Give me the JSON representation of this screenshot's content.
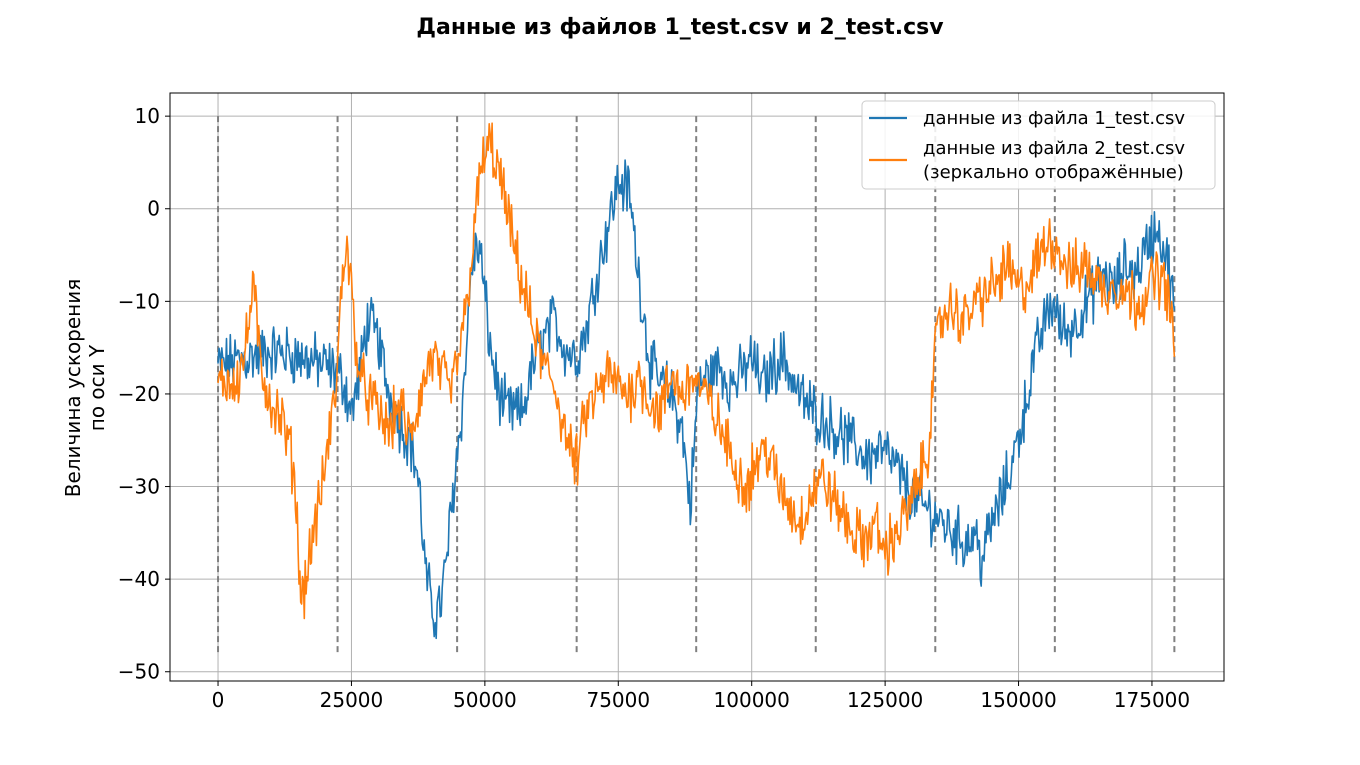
{
  "chart_data": {
    "type": "line",
    "title": "Данные из файлов 1_test.csv и 2_test.csv",
    "xlabel": "",
    "ylabel_line1": "Величина ускорения",
    "ylabel_line2": "по оси Y",
    "xlim": [
      -9000,
      188500
    ],
    "ylim": [
      -51,
      12.5
    ],
    "xticks": [
      0,
      25000,
      50000,
      75000,
      100000,
      125000,
      150000,
      175000
    ],
    "xtick_labels": [
      "0",
      "25000",
      "50000",
      "75000",
      "100000",
      "125000",
      "150000",
      "175000"
    ],
    "yticks": [
      10,
      0,
      -10,
      -20,
      -30,
      -40,
      -50
    ],
    "ytick_labels": [
      "10",
      "0",
      "−10",
      "−20",
      "−30",
      "−40",
      "−50"
    ],
    "grid": true,
    "legend_position": "top-right",
    "vlines": {
      "x": [
        0,
        22400,
        44800,
        67200,
        89600,
        112000,
        134400,
        156800,
        179200
      ],
      "ymin": -48,
      "ymax": 10,
      "color": "#808080",
      "style": "dashed"
    },
    "series": [
      {
        "name": "данные из файла 1_test.csv",
        "color": "#1f77b4",
        "x": [
          0,
          3000,
          6000,
          9000,
          12000,
          15000,
          18000,
          20000,
          22000,
          23500,
          25000,
          26500,
          28000,
          30000,
          32000,
          34000,
          36000,
          37500,
          39000,
          40500,
          42000,
          43500,
          44500,
          46000,
          47500,
          49000,
          51000,
          53000,
          55000,
          57000,
          59000,
          61000,
          63000,
          65000,
          67000,
          69000,
          71000,
          73000,
          75000,
          77000,
          79000,
          81000,
          83000,
          85000,
          87000,
          88500,
          90000,
          92000,
          94000,
          96000,
          98000,
          100000,
          102000,
          104000,
          106000,
          108000,
          110000,
          112000,
          114000,
          116000,
          118000,
          120000,
          122000,
          124000,
          126000,
          128000,
          130000,
          132000,
          134000,
          136000,
          138000,
          140000,
          142000,
          143000,
          145000,
          147000,
          149000,
          151000,
          153000,
          155000,
          156500,
          158000,
          160000,
          162000,
          164000,
          166000,
          168000,
          170000,
          172000,
          174000,
          176000,
          178000,
          179200
        ],
        "y": [
          -17,
          -16.5,
          -16,
          -15.5,
          -15.5,
          -16,
          -16.5,
          -17,
          -17.5,
          -18.5,
          -22,
          -18,
          -12,
          -14,
          -20,
          -23,
          -25,
          -29,
          -40,
          -44,
          -42,
          -34,
          -28,
          -20,
          -6,
          -4,
          -15,
          -21,
          -22,
          -22,
          -17,
          -14,
          -12,
          -15,
          -16,
          -13,
          -7,
          -2,
          3,
          2,
          -8,
          -17,
          -19,
          -20,
          -24,
          -32,
          -19,
          -18,
          -17,
          -19,
          -18,
          -16,
          -19,
          -17,
          -16,
          -19,
          -21,
          -22,
          -23,
          -24,
          -25,
          -26,
          -27,
          -26,
          -27,
          -29,
          -31,
          -32,
          -33,
          -34,
          -35,
          -36,
          -35,
          -38,
          -34,
          -31,
          -27,
          -22,
          -16,
          -12,
          -10,
          -13,
          -13,
          -11,
          -9,
          -7,
          -9,
          -6,
          -7,
          -4,
          -2,
          -6,
          -11
        ]
      },
      {
        "name": "данные из файла 2_test.csv\n(зеркально отображённые)",
        "color": "#ff7f0e",
        "x": [
          0,
          2000,
          4000,
          5500,
          6500,
          8000,
          10000,
          12000,
          13500,
          14500,
          15500,
          16500,
          17500,
          19000,
          20500,
          22000,
          23000,
          24000,
          25000,
          26500,
          28000,
          30000,
          32000,
          34000,
          36000,
          38000,
          40000,
          42000,
          43500,
          45000,
          46500,
          48000,
          49500,
          51000,
          53000,
          55000,
          57000,
          59000,
          61000,
          63000,
          65000,
          67000,
          69000,
          71000,
          73000,
          75000,
          77000,
          79000,
          81000,
          83000,
          85000,
          87000,
          89000,
          91000,
          93000,
          95000,
          97000,
          99000,
          101000,
          103000,
          105000,
          107000,
          109000,
          111000,
          113000,
          115000,
          117000,
          119000,
          121000,
          123000,
          125000,
          127000,
          129000,
          131000,
          133000,
          134500,
          136000,
          138000,
          140000,
          142000,
          144000,
          146000,
          148000,
          150000,
          152000,
          154000,
          156000,
          158000,
          160000,
          162000,
          164000,
          166000,
          168000,
          170000,
          172000,
          174000,
          176000,
          178000,
          179200
        ],
        "y": [
          -19,
          -18.5,
          -18,
          -14,
          -8,
          -17,
          -21,
          -23,
          -26,
          -30,
          -42,
          -40,
          -36,
          -32,
          -26,
          -20,
          -10,
          -3,
          -9,
          -18,
          -20,
          -22,
          -24,
          -21,
          -25,
          -20,
          -16,
          -18,
          -20,
          -16,
          -11,
          -2,
          5,
          7,
          3,
          -3,
          -8,
          -13,
          -17,
          -19,
          -24,
          -28,
          -22,
          -20,
          -18,
          -19,
          -20,
          -18,
          -21,
          -22,
          -18,
          -20,
          -18,
          -20,
          -22,
          -25,
          -28,
          -30,
          -27,
          -26,
          -30,
          -32,
          -34,
          -31,
          -29,
          -31,
          -33,
          -35,
          -36,
          -34,
          -37,
          -35,
          -33,
          -30,
          -26,
          -15,
          -11,
          -11,
          -12,
          -10,
          -9,
          -8,
          -6,
          -9,
          -8,
          -5,
          -3,
          -5,
          -7,
          -6,
          -7,
          -9,
          -8,
          -9,
          -10,
          -9,
          -7,
          -9,
          -16
        ]
      }
    ]
  }
}
